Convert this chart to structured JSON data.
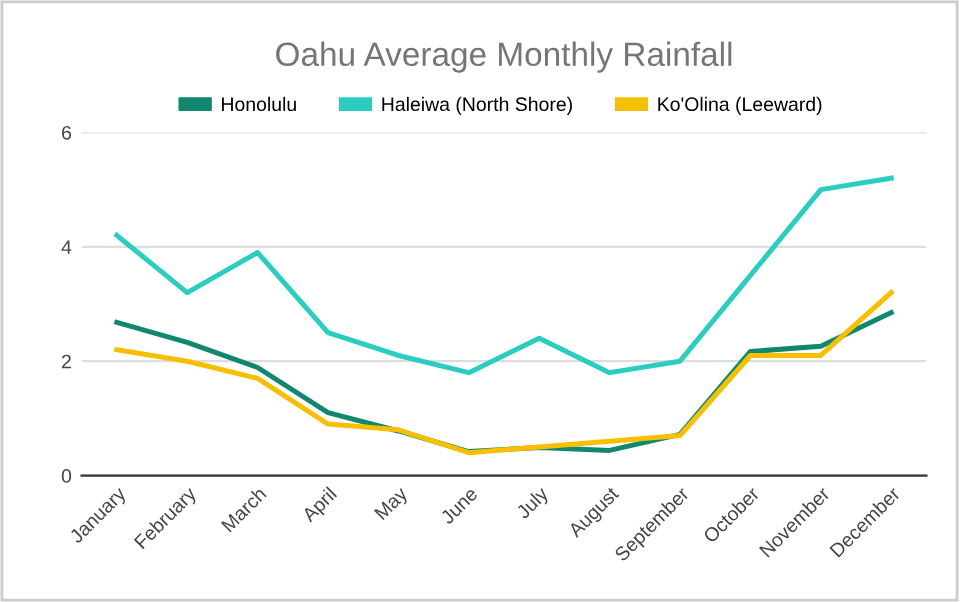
{
  "chart_data": {
    "type": "line",
    "title": "Oahu Average Monthly Rainfall",
    "categories": [
      "January",
      "February",
      "March",
      "April",
      "May",
      "June",
      "July",
      "August",
      "September",
      "October",
      "November",
      "December"
    ],
    "series": [
      {
        "name": "Honolulu",
        "color": "#12876f",
        "values": [
          2.68,
          2.33,
          1.89,
          1.1,
          0.78,
          0.42,
          0.49,
          0.44,
          0.72,
          2.17,
          2.26,
          2.85
        ]
      },
      {
        "name": "Haleiwa (North Shore)",
        "color": "#2bcdc1",
        "values": [
          4.2,
          3.2,
          3.9,
          2.5,
          2.1,
          1.8,
          2.4,
          1.8,
          2.0,
          3.5,
          5.0,
          5.2
        ]
      },
      {
        "name": "Ko'Olina (Leeward)",
        "color": "#f6c000",
        "values": [
          2.2,
          2.0,
          1.7,
          0.9,
          0.8,
          0.4,
          0.5,
          0.6,
          0.7,
          2.1,
          2.1,
          3.2
        ]
      }
    ],
    "ylim": [
      0,
      6
    ],
    "yticks": [
      0,
      2,
      4,
      6
    ],
    "grid": "y",
    "legend": "top",
    "marker": "none",
    "line_style": "solid"
  }
}
